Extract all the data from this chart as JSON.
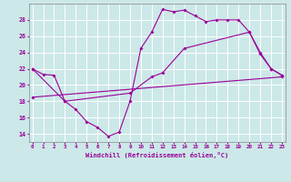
{
  "xlabel": "Windchill (Refroidissement éolien,°C)",
  "bg_color": "#cce8e8",
  "line_color": "#990099",
  "grid_color": "#ffffff",
  "spine_color": "#888888",
  "xlim": [
    -0.3,
    23.3
  ],
  "ylim": [
    13.0,
    30.0
  ],
  "yticks": [
    14,
    16,
    18,
    20,
    22,
    24,
    26,
    28
  ],
  "xticks": [
    0,
    1,
    2,
    3,
    4,
    5,
    6,
    7,
    8,
    9,
    10,
    11,
    12,
    13,
    14,
    15,
    16,
    17,
    18,
    19,
    20,
    21,
    22,
    23
  ],
  "line1_x": [
    0,
    1,
    2,
    3,
    4,
    5,
    6,
    7,
    8,
    9,
    10,
    11,
    12,
    13,
    14,
    15,
    16,
    17,
    18,
    19,
    20,
    21,
    22,
    23
  ],
  "line1_y": [
    22,
    21.3,
    21.2,
    18,
    17,
    15.5,
    14.8,
    13.7,
    14.2,
    18,
    24.5,
    26.5,
    29.3,
    29.0,
    29.2,
    28.5,
    27.8,
    28.0,
    28.0,
    28.0,
    26.5,
    23.8,
    22.0,
    21.2
  ],
  "line2_x": [
    0,
    3,
    9,
    11,
    12,
    14,
    20,
    21,
    22,
    23
  ],
  "line2_y": [
    22,
    18,
    19.0,
    21.0,
    21.5,
    24.5,
    26.5,
    24.0,
    22.0,
    21.2
  ],
  "line3_x": [
    0,
    23
  ],
  "line3_y": [
    18.5,
    21.0
  ]
}
